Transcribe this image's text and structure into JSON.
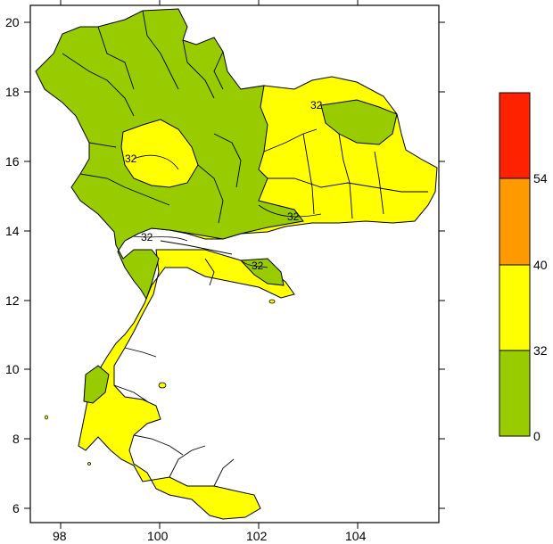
{
  "map": {
    "x_ticks": [
      "98",
      "100",
      "102",
      "104"
    ],
    "y_ticks": [
      "20",
      "18",
      "16",
      "14",
      "12",
      "10",
      "8",
      "6"
    ],
    "contour_labels": [
      "32",
      "32",
      "32",
      "32",
      "32"
    ],
    "colors": {
      "green": "#99cc00",
      "yellow": "#ffff00",
      "orange": "#ff9900",
      "red": "#ff2200",
      "outline": "#000000"
    }
  },
  "legend": {
    "bins": [
      {
        "from": "0",
        "to": "32",
        "color": "#99cc00"
      },
      {
        "from": "32",
        "to": "40",
        "color": "#ffff00"
      },
      {
        "from": "40",
        "to": "54",
        "color": "#ff9900"
      },
      {
        "from": "54",
        "to": "",
        "color": "#ff2200"
      }
    ],
    "labels": [
      "54",
      "40",
      "32",
      "0"
    ]
  }
}
